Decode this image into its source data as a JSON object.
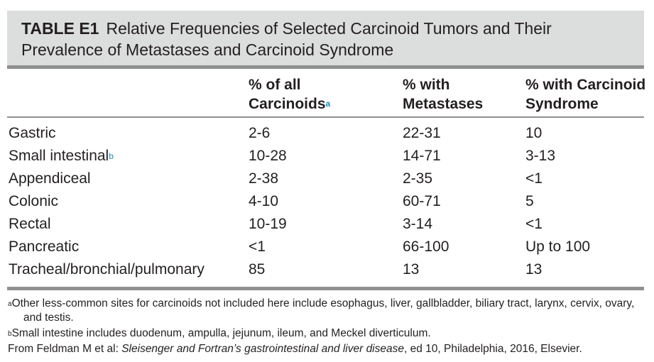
{
  "title": {
    "label": "TABLE E1",
    "line1": "Relative Frequencies of Selected Carcinoid Tumors and Their",
    "line2": "Prevalence of Metastases and Carcinoid Syndrome"
  },
  "columns": [
    {
      "line1": "",
      "line2": ""
    },
    {
      "line1": "% of all",
      "line2": "Carcinoids",
      "sup": "a"
    },
    {
      "line1": "% with",
      "line2": "Metastases"
    },
    {
      "line1": "% with Carcinoid",
      "line2": "Syndrome"
    }
  ],
  "rows": [
    {
      "site": "Gastric",
      "sup": "",
      "all": "2-6",
      "metastases": "22-31",
      "syndrome": "10"
    },
    {
      "site": "Small intestinal",
      "sup": "b",
      "all": "10-28",
      "metastases": "14-71",
      "syndrome": "3-13"
    },
    {
      "site": "Appendiceal",
      "sup": "",
      "all": "2-38",
      "metastases": "2-35",
      "syndrome": "<1"
    },
    {
      "site": "Colonic",
      "sup": "",
      "all": "4-10",
      "metastases": "60-71",
      "syndrome": "5"
    },
    {
      "site": "Rectal",
      "sup": "",
      "all": "10-19",
      "metastases": "3-14",
      "syndrome": "<1"
    },
    {
      "site": "Pancreatic",
      "sup": "",
      "all": "<1",
      "metastases": "66-100",
      "syndrome": "Up to 100"
    },
    {
      "site": "Tracheal/bronchial/pulmonary",
      "sup": "",
      "all": "85",
      "metastases": "13",
      "syndrome": "13"
    }
  ],
  "footnotes": {
    "a_mark": "a",
    "a_line1": "Other less-common sites for carcinoids not included here include esophagus, liver, gallbladder, biliary tract, larynx, cervix, ovary,",
    "a_line2": "and testis.",
    "b_mark": "b",
    "b_text": "Small intestine includes duodenum, ampulla, jejunum, ileum, and Meckel diverticulum.",
    "source_prefix": "From Feldman M et al: ",
    "source_title": "Sleisenger and Fortran’s gastrointestinal and liver disease",
    "source_suffix": ", ed 10, Philadelphia, 2016, Elsevier."
  },
  "colors": {
    "title_background": "#dcdddd",
    "rule": "#8f9091",
    "superscript_accent": "#1a8ab5",
    "text": "#231f20"
  }
}
